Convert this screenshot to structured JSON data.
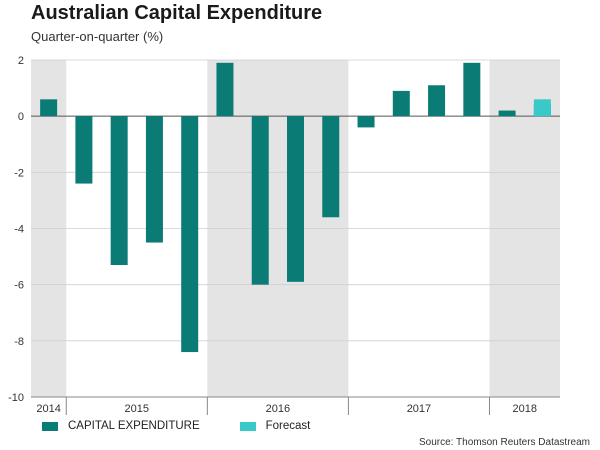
{
  "chart_data": {
    "type": "bar",
    "title": "Australian Capital Expenditure",
    "subtitle": "Quarter-on-quarter (%)",
    "ylim": [
      -10,
      2
    ],
    "yticks": [
      2,
      0,
      -2,
      -4,
      -6,
      -8,
      -10
    ],
    "grid": true,
    "categories": [
      "2014 Q4",
      "2015 Q1",
      "2015 Q2",
      "2015 Q3",
      "2015 Q4",
      "2016 Q1",
      "2016 Q2",
      "2016 Q3",
      "2016 Q4",
      "2017 Q1",
      "2017 Q2",
      "2017 Q3",
      "2017 Q4",
      "2018 Q1",
      "2018 Q2"
    ],
    "series": [
      {
        "name": "CAPITAL EXPENDITURE",
        "color": "#0b7b76",
        "values": [
          0.6,
          -2.4,
          -5.3,
          -4.5,
          -8.4,
          1.9,
          -6.0,
          -5.9,
          -3.6,
          -0.4,
          0.9,
          1.1,
          1.9,
          0.2,
          0.4
        ]
      },
      {
        "name": "Forecast",
        "color": "#39c9c9",
        "values": [
          null,
          null,
          null,
          null,
          null,
          null,
          null,
          null,
          null,
          null,
          null,
          null,
          null,
          null,
          0.6
        ]
      }
    ],
    "years": [
      "2014",
      "2015",
      "2016",
      "2017",
      "2018"
    ],
    "shaded_years": [
      "2014",
      "2016",
      "2018"
    ],
    "legend_position": "bottom-left"
  },
  "source": "Source: Thomson Reuters Datastream"
}
